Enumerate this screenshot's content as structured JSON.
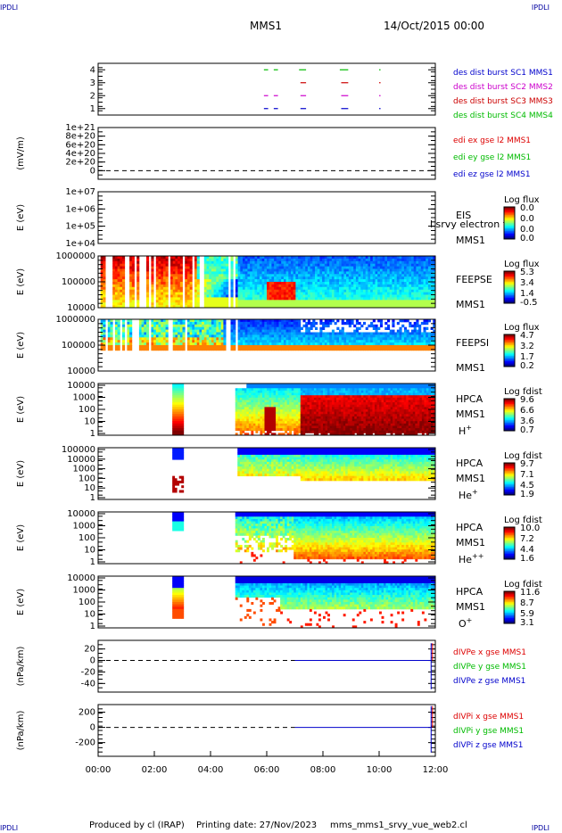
{
  "corner_label": "IPDLI",
  "header": {
    "mission": "MMS1",
    "date": "14/Oct/2015 00:00"
  },
  "footer": {
    "produced": "Produced by cl (IRAP)",
    "printing": "Printing date: 27/Nov/2023",
    "script": "mms_mms1_srvy_vue_web2.cl"
  },
  "colors": {
    "mms1": "#0000cc",
    "mms2": "#cc00cc",
    "mms3": "#cc0000",
    "mms4": "#00bb00",
    "x": "#dd0000",
    "y": "#00bb00",
    "z": "#0000cc"
  },
  "chart_data": {
    "type": "heatmap",
    "time_axis": {
      "range": [
        "00:00",
        "12:00"
      ],
      "ticks": [
        "00:00",
        "02:00",
        "04:00",
        "06:00",
        "08:00",
        "10:00",
        "12:00"
      ]
    },
    "panels": [
      {
        "id": "burst",
        "type": "scatter",
        "ylim": [
          0.5,
          4.5
        ],
        "yticks": [
          "1",
          "2",
          "3",
          "4"
        ],
        "legend": [
          {
            "label": "des dist burst SC1 MMS1",
            "color": "#0000cc"
          },
          {
            "label": "des dist burst SC2 MMS2",
            "color": "#cc00cc"
          },
          {
            "label": "des dist burst SC3 MMS3",
            "color": "#cc0000"
          },
          {
            "label": "des dist burst SC4 MMS4",
            "color": "#00bb00"
          }
        ],
        "segments": [
          {
            "y": 4,
            "color": "#00bb00",
            "t": [
              [
                5.9,
                6.05
              ],
              [
                6.25,
                6.4
              ],
              [
                7.15,
                7.4
              ],
              [
                8.6,
                8.9
              ],
              [
                10.0,
                10.05
              ]
            ]
          },
          {
            "y": 3,
            "color": "#cc0000",
            "t": [
              [
                7.2,
                7.4
              ],
              [
                8.65,
                8.9
              ],
              [
                10.0,
                10.05
              ]
            ]
          },
          {
            "y": 2,
            "color": "#cc00cc",
            "t": [
              [
                5.9,
                6.05
              ],
              [
                6.25,
                6.4
              ],
              [
                7.2,
                7.4
              ],
              [
                8.65,
                8.9
              ],
              [
                10.0,
                10.05
              ]
            ]
          },
          {
            "y": 1,
            "color": "#0000cc",
            "t": [
              [
                5.9,
                6.05
              ],
              [
                6.25,
                6.4
              ],
              [
                7.2,
                7.4
              ],
              [
                8.65,
                8.9
              ],
              [
                10.0,
                10.05
              ]
            ]
          }
        ]
      },
      {
        "id": "edi",
        "type": "line",
        "ylabel": "(mV/m)",
        "ylim": [
          -2e+20,
          1e+21
        ],
        "yticks": [
          "1e+21",
          "8e+20",
          "6e+20",
          "4e+20",
          "2e+20",
          "0"
        ],
        "legend": [
          {
            "label": "edi ex gse l2 MMS1",
            "color": "#dd0000"
          },
          {
            "label": "edi ey gse l2 MMS1",
            "color": "#00bb00"
          },
          {
            "label": "edi ez gse l2 MMS1",
            "color": "#0000cc"
          }
        ]
      },
      {
        "id": "eis",
        "type": "heatmap",
        "ylabel": "E (eV)",
        "yticks": [
          "1e+07",
          "1e+06",
          "1e+05",
          "1e+04"
        ],
        "label_lines": [
          "EIS",
          "MMS1"
        ],
        "overlay_text": "l srvy electron to",
        "colorbar": {
          "title": "Log flux",
          "ticks": [
            "0.0",
            "0.0",
            "0.0",
            "0.0"
          ]
        }
      },
      {
        "id": "feepse",
        "type": "heatmap",
        "ylabel": "E (eV)",
        "yticks": [
          "1000000",
          "100000",
          "10000"
        ],
        "label_lines": [
          "FEEPSE",
          "MMS1"
        ],
        "colorbar": {
          "title": "Log flux",
          "ticks": [
            "5.3",
            "3.4",
            "1.4",
            "-0.5"
          ]
        }
      },
      {
        "id": "feepsi",
        "type": "heatmap",
        "ylabel": "E (eV)",
        "yticks": [
          "1000000",
          "100000",
          "10000"
        ],
        "label_lines": [
          "FEEPSI",
          "MMS1"
        ],
        "colorbar": {
          "title": "Log flux",
          "ticks": [
            "4.7",
            "3.2",
            "1.7",
            "0.2"
          ]
        }
      },
      {
        "id": "hpca_h",
        "type": "heatmap",
        "ylabel": "E (eV)",
        "yticks": [
          "10000",
          "1000",
          "100",
          "10",
          "1"
        ],
        "label_lines": [
          "HPCA",
          "MMS1"
        ],
        "species": {
          "base": "H",
          "sup": "+"
        },
        "colorbar": {
          "title": "Log fdist",
          "ticks": [
            "9.6",
            "6.6",
            "3.6",
            "0.7"
          ]
        }
      },
      {
        "id": "hpca_he",
        "type": "heatmap",
        "ylabel": "E (eV)",
        "yticks": [
          "100000",
          "10000",
          "1000",
          "100",
          "10",
          "1"
        ],
        "label_lines": [
          "HPCA",
          "MMS1"
        ],
        "species": {
          "base": "He",
          "sup": "+"
        },
        "colorbar": {
          "title": "Log fdist",
          "ticks": [
            "9.7",
            "7.1",
            "4.5",
            "1.9"
          ]
        }
      },
      {
        "id": "hpca_hepp",
        "type": "heatmap",
        "ylabel": "E (eV)",
        "yticks": [
          "10000",
          "1000",
          "100",
          "10",
          "1"
        ],
        "label_lines": [
          "HPCA",
          "MMS1"
        ],
        "species": {
          "base": "He",
          "sup": "++"
        },
        "colorbar": {
          "title": "Log fdist",
          "ticks": [
            "10.0",
            "7.2",
            "4.4",
            "1.6"
          ]
        }
      },
      {
        "id": "hpca_o",
        "type": "heatmap",
        "ylabel": "E (eV)",
        "yticks": [
          "10000",
          "1000",
          "100",
          "10",
          "1"
        ],
        "label_lines": [
          "HPCA",
          "MMS1"
        ],
        "species": {
          "base": "O",
          "sup": "+"
        },
        "colorbar": {
          "title": "Log fdist",
          "ticks": [
            "11.6",
            "8.7",
            "5.9",
            "3.1"
          ]
        }
      },
      {
        "id": "divpe",
        "type": "line",
        "ylabel": "(nPa/km)",
        "ylim": [
          -55,
          35
        ],
        "yticks": [
          "20",
          "0",
          "-20",
          "-40"
        ],
        "tick_values": [
          20,
          0,
          -20,
          -40
        ],
        "legend": [
          {
            "label": "dIVPe x gse MMS1",
            "color": "#dd0000"
          },
          {
            "label": "dIVPe y gse MMS1",
            "color": "#00bb00"
          },
          {
            "label": "dIVPe z gse MMS1",
            "color": "#0000cc"
          }
        ]
      },
      {
        "id": "divpi",
        "type": "line",
        "ylabel": "(nPa/km)",
        "ylim": [
          -380,
          300
        ],
        "yticks": [
          "200",
          "0",
          "-200"
        ],
        "tick_values": [
          200,
          0,
          -200
        ],
        "legend": [
          {
            "label": "dIVPi x gse MMS1",
            "color": "#dd0000"
          },
          {
            "label": "dIVPi y gse MMS1",
            "color": "#00bb00"
          },
          {
            "label": "dIVPi z gse MMS1",
            "color": "#0000cc"
          }
        ]
      }
    ]
  }
}
